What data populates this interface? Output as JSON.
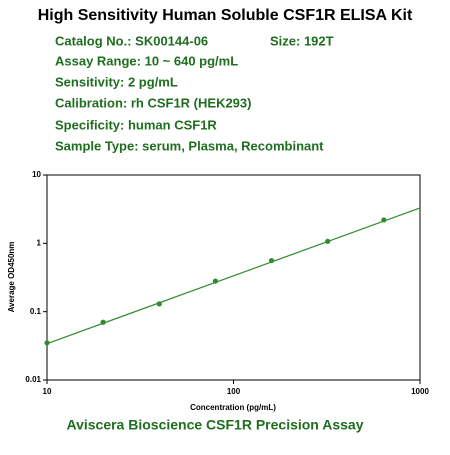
{
  "header": {
    "title": "High Sensitivity Human Soluble CSF1R ELISA Kit",
    "lines": [
      "Catalog No.: SK00144-06",
      "Assay Range: 10 ~ 640 pg/mL",
      "Sensitivity: 2 pg/mL",
      "Calibration: rh CSF1R (HEK293)",
      "Specificity: human CSF1R",
      "Sample Type: serum, Plasma, Recombinant"
    ],
    "size": "Size: 192T"
  },
  "chart_data": {
    "type": "scatter",
    "x_label": "Concentration (pg/mL)",
    "y_label": "Average OD450nm",
    "x": [
      10,
      20,
      40,
      80,
      160,
      320,
      640
    ],
    "values": [
      0.035,
      0.07,
      0.13,
      0.28,
      0.56,
      1.07,
      2.2
    ],
    "color": "#2e8b2e",
    "fit": {
      "x": [
        10,
        1000
      ],
      "values": [
        0.034,
        3.3
      ],
      "color": "#2e8b2e"
    },
    "log_x": true,
    "log_y": true,
    "xlim": [
      10,
      1000
    ],
    "ylim": [
      0.01,
      10
    ],
    "xticks": [
      10,
      100,
      1000
    ],
    "yticks": [
      0.01,
      0.1,
      1,
      10
    ]
  },
  "footer": "Aviscera Bioscience CSF1R Precision Assay"
}
